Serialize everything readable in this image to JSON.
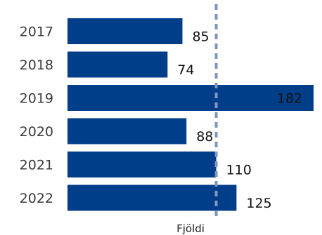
{
  "chart_data": {
    "type": "bar",
    "orientation": "horizontal",
    "categories": [
      "2017",
      "2018",
      "2019",
      "2020",
      "2021",
      "2022"
    ],
    "values": [
      85,
      74,
      182,
      88,
      110,
      125
    ],
    "reference_line": {
      "value": 110,
      "style": "dashed"
    },
    "title": "",
    "xlabel": "Fjöldi",
    "ylabel": "",
    "xlim": [
      0,
      182
    ],
    "grid": false,
    "legend": "none",
    "colors": {
      "bar": "#003e8a",
      "reference_line": "#8096be"
    }
  }
}
